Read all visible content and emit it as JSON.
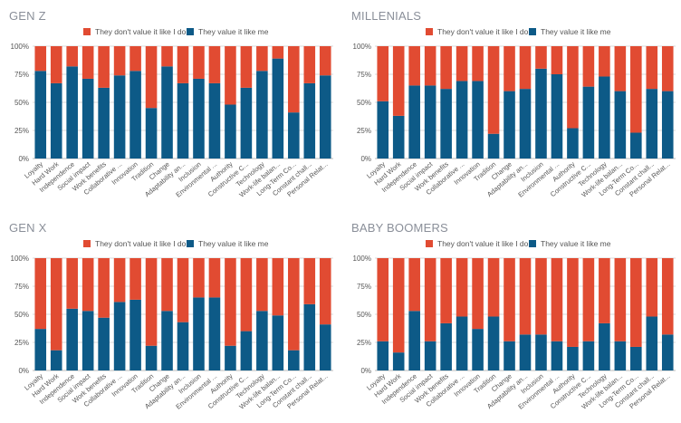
{
  "colors": {
    "dont_value": "#e14b32",
    "value": "#0d5a87",
    "axis_text": "#555555",
    "grid": "#d9d9d9"
  },
  "legend": {
    "dont_value_label": "They don't value it like I do",
    "value_label": "They value it like me"
  },
  "chart_data": [
    {
      "type": "bar",
      "stacked": true,
      "percent": true,
      "title": "GEN Z",
      "categories": [
        "Loyalty",
        "Hard Work",
        "Independence",
        "Social impact",
        "Work benefits",
        "Collaborative ...",
        "Innovation",
        "Tradition",
        "Change",
        "Adaptability an...",
        "Inclusion",
        "Environmental ...",
        "Authority",
        "Constructive C...",
        "Technology",
        "Work-life balan...",
        "Long-Term Co...",
        "Constant chall...",
        "Personal Relat..."
      ],
      "yticks": [
        "0%",
        "25%",
        "50%",
        "75%",
        "100%"
      ],
      "ylim": [
        0,
        100
      ],
      "series": [
        {
          "name": "They value it like me",
          "values": [
            78,
            67,
            82,
            71,
            63,
            74,
            78,
            45,
            82,
            67,
            71,
            67,
            48,
            63,
            78,
            89,
            41,
            67,
            74
          ]
        },
        {
          "name": "They don't value it like I do",
          "values": [
            22,
            33,
            18,
            29,
            37,
            26,
            22,
            55,
            18,
            33,
            29,
            33,
            52,
            37,
            22,
            11,
            59,
            33,
            26
          ]
        }
      ]
    },
    {
      "type": "bar",
      "stacked": true,
      "percent": true,
      "title": "MILLENIALS",
      "categories": [
        "Loyalty",
        "Hard Work",
        "Independence",
        "Social impact",
        "Work benefits",
        "Collaborative ...",
        "Innovation",
        "Tradition",
        "Change",
        "Adaptability an...",
        "Inclusion",
        "Environmental ...",
        "Authority",
        "Constructive C...",
        "Technology",
        "Work-life balan...",
        "Long-Term Co...",
        "Constant chall...",
        "Personal Relat..."
      ],
      "yticks": [
        "0%",
        "25%",
        "50%",
        "75%",
        "100%"
      ],
      "ylim": [
        0,
        100
      ],
      "series": [
        {
          "name": "They value it like me",
          "values": [
            51,
            38,
            65,
            65,
            62,
            69,
            69,
            22,
            60,
            62,
            80,
            75,
            27,
            64,
            73,
            60,
            23,
            62,
            60
          ]
        },
        {
          "name": "They don't value it like I do",
          "values": [
            49,
            62,
            35,
            35,
            38,
            31,
            31,
            78,
            40,
            38,
            20,
            25,
            73,
            36,
            27,
            40,
            77,
            38,
            40
          ]
        }
      ]
    },
    {
      "type": "bar",
      "stacked": true,
      "percent": true,
      "title": "GEN X",
      "categories": [
        "Loyalty",
        "Hard Work",
        "Independence",
        "Social impact",
        "Work benefits",
        "Collaborative ...",
        "Innovation",
        "Tradition",
        "Change",
        "Adaptability an...",
        "Inclusion",
        "Environmental ...",
        "Authority",
        "Constructive C...",
        "Technology",
        "Work-life balan...",
        "Long-Term Co...",
        "Constant chall...",
        "Personal Relat..."
      ],
      "yticks": [
        "0%",
        "25%",
        "50%",
        "75%",
        "100%"
      ],
      "ylim": [
        0,
        100
      ],
      "series": [
        {
          "name": "They value it like me",
          "values": [
            37,
            18,
            55,
            53,
            47,
            61,
            63,
            22,
            53,
            43,
            65,
            65,
            22,
            35,
            53,
            49,
            18,
            59,
            41
          ]
        },
        {
          "name": "They don't value it like I do",
          "values": [
            63,
            82,
            45,
            47,
            53,
            39,
            37,
            78,
            47,
            57,
            35,
            35,
            78,
            65,
            47,
            51,
            82,
            41,
            59
          ]
        }
      ]
    },
    {
      "type": "bar",
      "stacked": true,
      "percent": true,
      "title": "BABY BOOMERS",
      "categories": [
        "Loyalty",
        "Hard Work",
        "Independence",
        "Social impact",
        "Work benefits",
        "Collaborative ...",
        "Innovation",
        "Tradition",
        "Change",
        "Adaptability an...",
        "Inclusion",
        "Environmental ...",
        "Authority",
        "Constructive C...",
        "Technology",
        "Work-life balan...",
        "Long-Term Co...",
        "Constant chall...",
        "Personal Relat..."
      ],
      "yticks": [
        "0%",
        "25%",
        "50%",
        "75%",
        "100%"
      ],
      "ylim": [
        0,
        100
      ],
      "series": [
        {
          "name": "They value it like me",
          "values": [
            26,
            16,
            53,
            26,
            42,
            48,
            37,
            48,
            26,
            32,
            32,
            26,
            21,
            26,
            42,
            26,
            21,
            48,
            32
          ]
        },
        {
          "name": "They don't value it like I do",
          "values": [
            74,
            84,
            47,
            74,
            58,
            52,
            63,
            52,
            74,
            68,
            68,
            74,
            79,
            74,
            58,
            74,
            79,
            52,
            68
          ]
        }
      ]
    }
  ]
}
